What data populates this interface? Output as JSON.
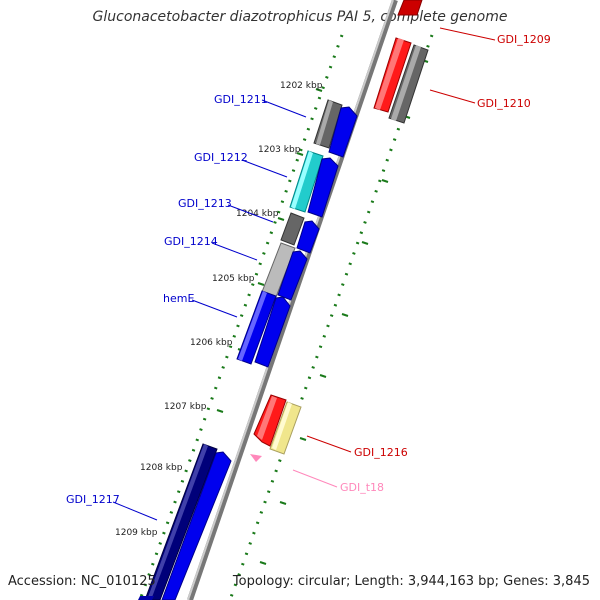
{
  "title": "Gluconacetobacter diazotrophicus PAI 5, complete genome",
  "accession": "Accession: NC_010125",
  "summary": "Topology: circular; Length: 3,944,163 bp; Genes: 3,845",
  "ticks": [
    "1202 kbp",
    "1203 kbp",
    "1204 kbp",
    "1205 kbp",
    "1206 kbp",
    "1207 kbp",
    "1208 kbp",
    "1209 kbp"
  ],
  "genes": [
    {
      "name": "GDI_1209",
      "color": "#cc0000",
      "strand": "outer"
    },
    {
      "name": "GDI_1210",
      "color": "#cc0000",
      "strand": "outer"
    },
    {
      "name": "GDI_1211",
      "color": "#0000cc",
      "strand": "inner"
    },
    {
      "name": "GDI_1212",
      "color": "#0000cc",
      "strand": "inner"
    },
    {
      "name": "GDI_1213",
      "color": "#0000cc",
      "strand": "inner"
    },
    {
      "name": "GDI_1214",
      "color": "#0000cc",
      "strand": "inner"
    },
    {
      "name": "hemE",
      "color": "#0000cc",
      "strand": "inner"
    },
    {
      "name": "GDI_1216",
      "color": "#cc0000",
      "strand": "outer"
    },
    {
      "name": "GDI_t18",
      "color": "#ff88bb",
      "strand": "outer"
    },
    {
      "name": "GDI_1217",
      "color": "#0000cc",
      "strand": "inner"
    }
  ]
}
